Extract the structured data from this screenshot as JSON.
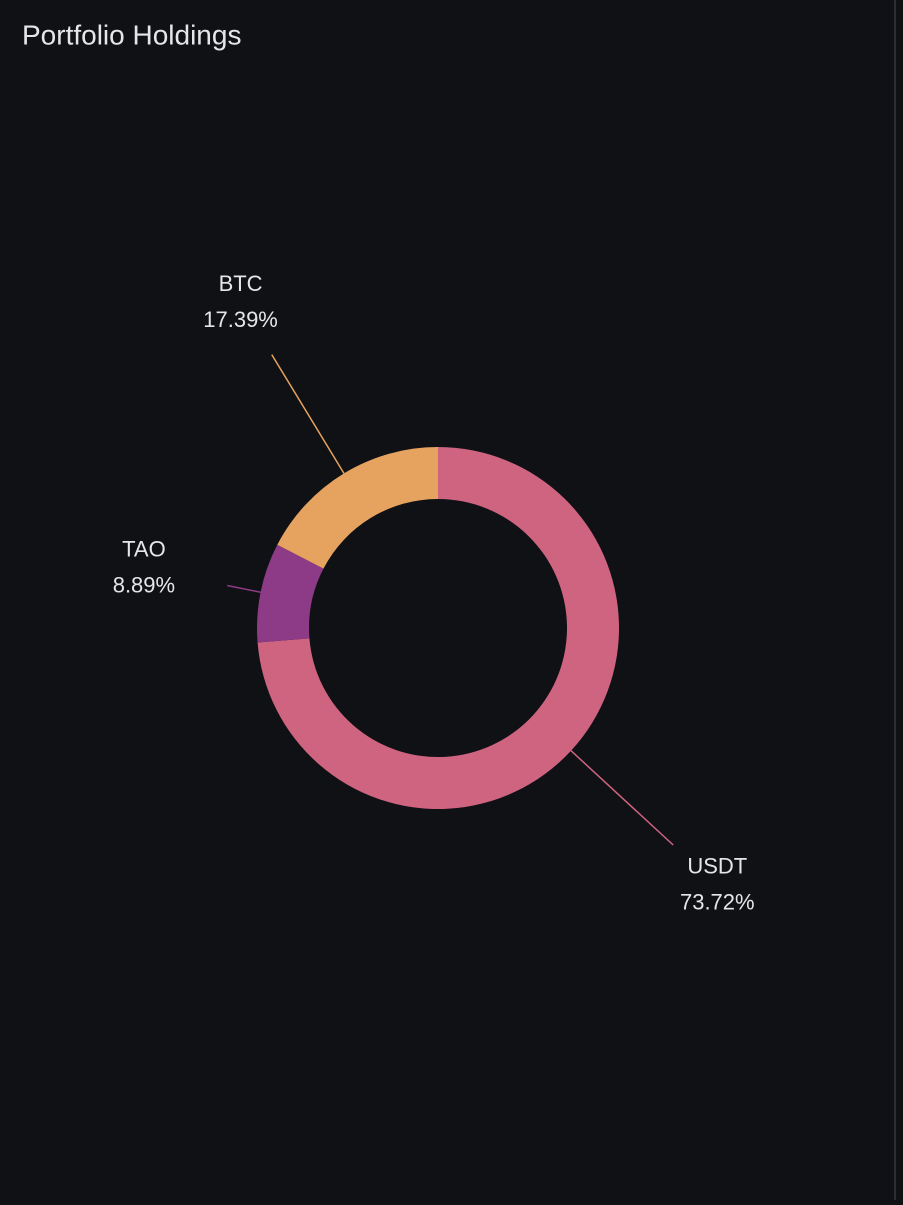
{
  "chart_data": {
    "type": "donut",
    "title": "Portfolio Holdings",
    "categories": [
      "USDT",
      "TAO",
      "BTC"
    ],
    "values": [
      73.72,
      8.89,
      17.39
    ],
    "value_labels": [
      "73.72%",
      "8.89%",
      "17.39%"
    ],
    "colors": [
      "#cf6480",
      "#8d3b87",
      "#e6a35f"
    ]
  }
}
